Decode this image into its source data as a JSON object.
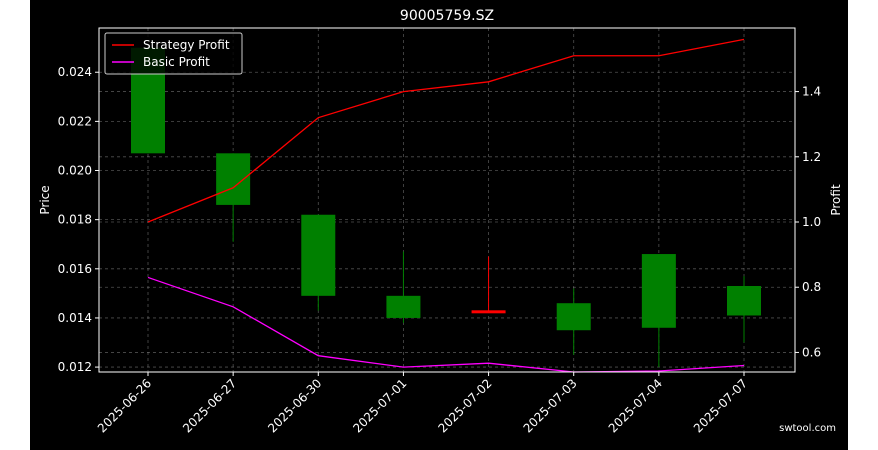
{
  "chart_data": {
    "type": "candlestick",
    "title": "90005759.SZ",
    "ylabel_left": "Price",
    "ylabel_right": "Profit",
    "categories": [
      "2025-06-26",
      "2025-06-27",
      "2025-06-30",
      "2025-07-01",
      "2025-07-02",
      "2025-07-03",
      "2025-07-04",
      "2025-07-07"
    ],
    "candles": [
      {
        "open": 0.025,
        "close": 0.0207,
        "high": 0.025,
        "low": 0.0207
      },
      {
        "open": 0.0207,
        "close": 0.0186,
        "high": 0.0207,
        "low": 0.0171
      },
      {
        "open": 0.0182,
        "close": 0.0149,
        "high": 0.0182,
        "low": 0.0143
      },
      {
        "open": 0.0149,
        "close": 0.014,
        "high": 0.0167,
        "low": 0.0138
      },
      {
        "open": 0.0143,
        "close": 0.0142,
        "high": 0.0165,
        "low": 0.0142
      },
      {
        "open": 0.0146,
        "close": 0.0135,
        "high": 0.0152,
        "low": 0.0125
      },
      {
        "open": 0.0166,
        "close": 0.0136,
        "high": 0.0166,
        "low": 0.012
      },
      {
        "open": 0.0153,
        "close": 0.0141,
        "high": 0.0157,
        "low": 0.013
      }
    ],
    "series": [
      {
        "name": "Strategy Profit",
        "color": "#ff0000",
        "values": [
          1.0,
          1.105,
          1.32,
          1.4,
          1.43,
          1.51,
          1.51,
          1.56
        ]
      },
      {
        "name": "Basic Profit",
        "color": "#ff00ff",
        "values": [
          0.83,
          0.74,
          0.59,
          0.555,
          0.567,
          0.54,
          0.543,
          0.56
        ]
      }
    ],
    "ylim_left": [
      0.0118,
      0.0258
    ],
    "ylim_right": [
      0.54,
      1.595
    ],
    "yticks_left": [
      "0.012",
      "0.014",
      "0.016",
      "0.018",
      "0.020",
      "0.022",
      "0.024"
    ],
    "yticks_right": [
      "0.6",
      "0.8",
      "1.0",
      "1.2",
      "1.4"
    ],
    "candle_colors": {
      "down": "#008000",
      "flat": "#ff0000"
    },
    "grid": true,
    "legend_position": "top-left"
  },
  "watermark": "swtool.com"
}
